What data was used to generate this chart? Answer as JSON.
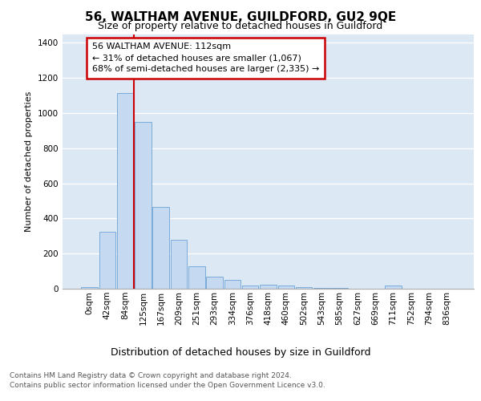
{
  "title": "56, WALTHAM AVENUE, GUILDFORD, GU2 9QE",
  "subtitle": "Size of property relative to detached houses in Guildford",
  "xlabel": "Distribution of detached houses by size in Guildford",
  "ylabel": "Number of detached properties",
  "footnote1": "Contains HM Land Registry data © Crown copyright and database right 2024.",
  "footnote2": "Contains public sector information licensed under the Open Government Licence v3.0.",
  "bar_labels": [
    "0sqm",
    "42sqm",
    "84sqm",
    "125sqm",
    "167sqm",
    "209sqm",
    "251sqm",
    "293sqm",
    "334sqm",
    "376sqm",
    "418sqm",
    "460sqm",
    "502sqm",
    "543sqm",
    "585sqm",
    "627sqm",
    "669sqm",
    "711sqm",
    "752sqm",
    "794sqm",
    "836sqm"
  ],
  "bar_values": [
    10,
    325,
    1115,
    950,
    465,
    280,
    130,
    68,
    48,
    20,
    25,
    18,
    10,
    5,
    5,
    2,
    2,
    18,
    0,
    0,
    0
  ],
  "bar_color": "#c5d9f1",
  "bar_edge_color": "#7aacda",
  "vline_x": 2.5,
  "vline_color": "#cc0000",
  "annotation_text_line1": "56 WALTHAM AVENUE: 112sqm",
  "annotation_text_line2": "← 31% of detached houses are smaller (1,067)",
  "annotation_text_line3": "68% of semi-detached houses are larger (2,335) →",
  "annotation_box_facecolor": "#ffffff",
  "annotation_box_edgecolor": "#cc0000",
  "ylim_max": 1450,
  "yticks": [
    0,
    200,
    400,
    600,
    800,
    1000,
    1200,
    1400
  ],
  "plot_bg_color": "#dde8f5",
  "fig_bg_color": "#ffffff",
  "grid_color": "#ffffff",
  "title_fontsize": 11,
  "subtitle_fontsize": 9,
  "ylabel_fontsize": 8,
  "xlabel_fontsize": 9,
  "tick_fontsize": 7.5,
  "annot_fontsize": 8,
  "footnote_fontsize": 6.5
}
